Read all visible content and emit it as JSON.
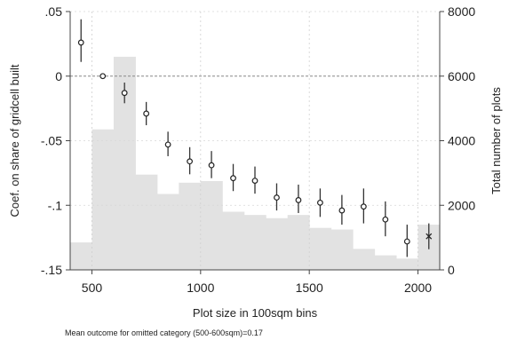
{
  "chart_data": {
    "type": "bar+scatter",
    "x_axis": {
      "label": "Plot size in 100sqm bins",
      "range": [
        400,
        2100
      ],
      "ticks": [
        500,
        1000,
        1500,
        2000
      ]
    },
    "left_axis": {
      "label": "Coef. on share of gridcell built",
      "range": [
        -0.15,
        0.05
      ],
      "ticks": [
        -0.15,
        -0.1,
        -0.05,
        0,
        0.05
      ],
      "tick_labels": [
        "-.15",
        "-.1",
        "-.05",
        "0",
        ".05"
      ],
      "reference_line": 0
    },
    "right_axis": {
      "label": "Total number of plots",
      "range": [
        0,
        8000
      ],
      "ticks": [
        0,
        2000,
        4000,
        6000,
        8000
      ],
      "tick_labels": [
        "0",
        "2000",
        "4000",
        "6000",
        "8000"
      ]
    },
    "histogram": {
      "color": "#e2e2e2",
      "bins": [
        {
          "x0": 400,
          "x1": 500,
          "value": 850
        },
        {
          "x0": 500,
          "x1": 600,
          "value": 4350
        },
        {
          "x0": 600,
          "x1": 700,
          "value": 6600
        },
        {
          "x0": 700,
          "x1": 800,
          "value": 2950
        },
        {
          "x0": 800,
          "x1": 900,
          "value": 2350
        },
        {
          "x0": 900,
          "x1": 1000,
          "value": 2700
        },
        {
          "x0": 1000,
          "x1": 1100,
          "value": 2750
        },
        {
          "x0": 1100,
          "x1": 1200,
          "value": 1800
        },
        {
          "x0": 1200,
          "x1": 1300,
          "value": 1700
        },
        {
          "x0": 1300,
          "x1": 1400,
          "value": 1600
        },
        {
          "x0": 1400,
          "x1": 1500,
          "value": 1700
        },
        {
          "x0": 1500,
          "x1": 1600,
          "value": 1300
        },
        {
          "x0": 1600,
          "x1": 1700,
          "value": 1250
        },
        {
          "x0": 1700,
          "x1": 1800,
          "value": 650
        },
        {
          "x0": 1800,
          "x1": 1900,
          "value": 450
        },
        {
          "x0": 1900,
          "x1": 2000,
          "value": 350
        },
        {
          "x0": 2000,
          "x1": 2100,
          "value": 1400
        }
      ]
    },
    "coefficients": {
      "marker": "hollow-circle",
      "color": "#222222",
      "points": [
        {
          "x": 450,
          "y": 0.026,
          "lo": 0.011,
          "hi": 0.044
        },
        {
          "x": 550,
          "y": 0.0,
          "lo": 0.0,
          "hi": 0.0,
          "omitted": true
        },
        {
          "x": 650,
          "y": -0.013,
          "lo": -0.021,
          "hi": -0.005
        },
        {
          "x": 750,
          "y": -0.029,
          "lo": -0.038,
          "hi": -0.02
        },
        {
          "x": 850,
          "y": -0.053,
          "lo": -0.062,
          "hi": -0.043
        },
        {
          "x": 950,
          "y": -0.066,
          "lo": -0.076,
          "hi": -0.055
        },
        {
          "x": 1050,
          "y": -0.069,
          "lo": -0.079,
          "hi": -0.058
        },
        {
          "x": 1150,
          "y": -0.079,
          "lo": -0.089,
          "hi": -0.068
        },
        {
          "x": 1250,
          "y": -0.081,
          "lo": -0.091,
          "hi": -0.07
        },
        {
          "x": 1350,
          "y": -0.094,
          "lo": -0.104,
          "hi": -0.083
        },
        {
          "x": 1450,
          "y": -0.096,
          "lo": -0.106,
          "hi": -0.084
        },
        {
          "x": 1550,
          "y": -0.098,
          "lo": -0.109,
          "hi": -0.087
        },
        {
          "x": 1650,
          "y": -0.104,
          "lo": -0.115,
          "hi": -0.092
        },
        {
          "x": 1750,
          "y": -0.101,
          "lo": -0.114,
          "hi": -0.087
        },
        {
          "x": 1850,
          "y": -0.111,
          "lo": -0.124,
          "hi": -0.097
        },
        {
          "x": 1950,
          "y": -0.128,
          "lo": -0.14,
          "hi": -0.115
        },
        {
          "x": 2050,
          "y": -0.124,
          "lo": -0.134,
          "hi": -0.114,
          "marker": "x"
        }
      ]
    },
    "gridlines": "dashed-light",
    "note": "Mean outcome for omitted category (500-600sqm)=0.17"
  }
}
